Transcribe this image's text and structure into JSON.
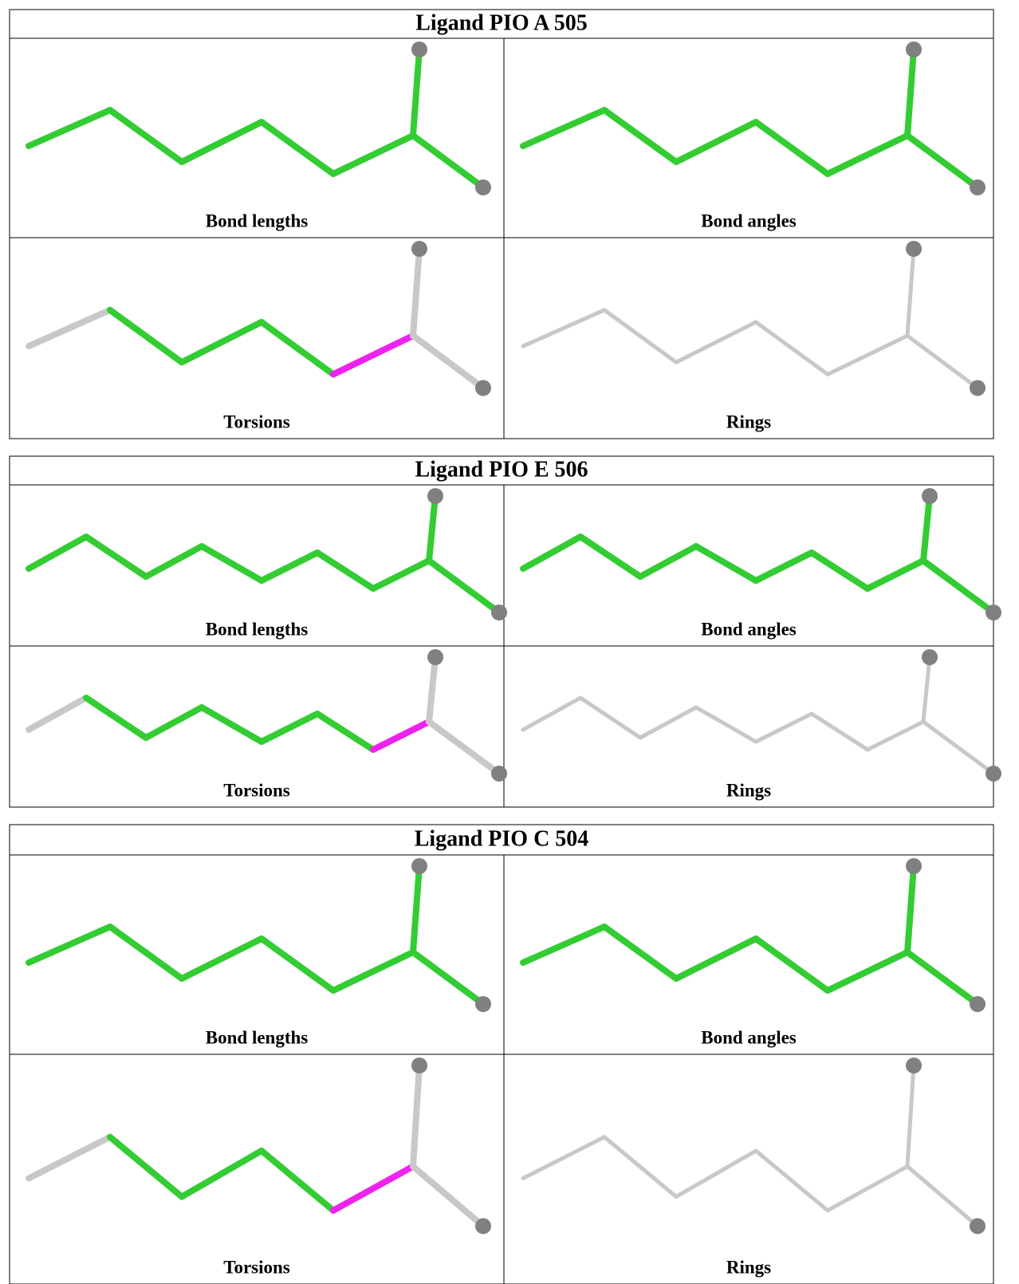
{
  "tables": [
    {
      "title": "Ligand PIO A 505",
      "panels": [
        "Bond lengths",
        "Bond angles",
        "Torsions",
        "Rings"
      ]
    },
    {
      "title": "Ligand PIO E 506",
      "panels": [
        "Bond lengths",
        "Bond angles",
        "Torsions",
        "Rings"
      ]
    },
    {
      "title": "Ligand PIO C 504",
      "panels": [
        "Bond lengths",
        "Bond angles",
        "Torsions",
        "Rings"
      ]
    }
  ]
}
